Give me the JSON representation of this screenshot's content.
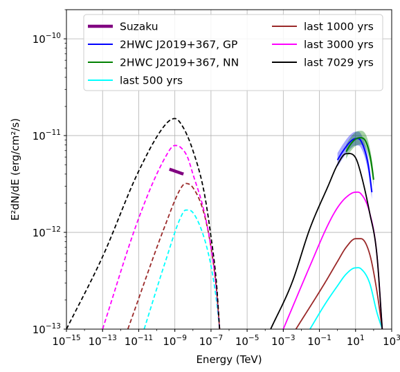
{
  "chart_data": {
    "type": "line",
    "xlabel": "Energy (TeV)",
    "ylabel": "E²dN/dE (erg/cm²/s)",
    "xscale": "log",
    "yscale": "log",
    "xlim": [
      1e-15,
      1000
    ],
    "ylim": [
      1e-13,
      2e-10
    ],
    "xticks": [
      {
        "base": "10",
        "exp": "−15",
        "value": 1e-15
      },
      {
        "base": "10",
        "exp": "−13",
        "value": 1e-13
      },
      {
        "base": "10",
        "exp": "−11",
        "value": 1e-11
      },
      {
        "base": "10",
        "exp": "−9",
        "value": 1e-09
      },
      {
        "base": "10",
        "exp": "−7",
        "value": 1e-07
      },
      {
        "base": "10",
        "exp": "−5",
        "value": 1e-05
      },
      {
        "base": "10",
        "exp": "−3",
        "value": 0.001
      },
      {
        "base": "10",
        "exp": "−1",
        "value": 0.1
      },
      {
        "base": "10",
        "exp": "1",
        "value": 10
      },
      {
        "base": "10",
        "exp": "3",
        "value": 1000
      }
    ],
    "yticks": [
      {
        "base": "10",
        "exp": "−13",
        "value": 1e-13
      },
      {
        "base": "10",
        "exp": "−12",
        "value": 1e-12
      },
      {
        "base": "10",
        "exp": "−11",
        "value": 1e-11
      },
      {
        "base": "10",
        "exp": "−10",
        "value": 1e-10
      }
    ],
    "grid": true,
    "legend_position": "top",
    "legend_columns": 2,
    "series": [
      {
        "name": "Suzaku",
        "color": "#800080",
        "style": "solid-thick",
        "x": [
          5e-10,
          3e-09
        ],
        "y": [
          4.5e-12,
          4e-12
        ]
      },
      {
        "name": "2HWC J2019+367, GP",
        "color": "#0000ff",
        "style": "solid-band",
        "x": [
          1,
          2,
          5,
          10,
          20,
          50,
          80
        ],
        "y": [
          5.6e-12,
          6.9e-12,
          8.6e-12,
          9.3e-12,
          8.8e-12,
          5e-12,
          2.6e-12
        ]
      },
      {
        "name": "2HWC J2019+367, NN",
        "color": "#008000",
        "style": "solid-band",
        "x": [
          3,
          5,
          10,
          20,
          40,
          70,
          100
        ],
        "y": [
          6.8e-12,
          8e-12,
          9.2e-12,
          9.5e-12,
          8.4e-12,
          5.6e-12,
          3.5e-12
        ]
      },
      {
        "name": "last 500 yrs",
        "color": "#00ffff",
        "style": "dashed+solid",
        "x": [
          2e-11,
          3e-10,
          2e-09,
          4e-09,
          1e-08,
          4e-08,
          1e-07,
          2e-07,
          3e-07,
          0.03,
          0.2,
          1,
          3,
          10,
          20,
          60,
          150,
          300
        ],
        "y": [
          1e-13,
          5e-13,
          1.4e-12,
          1.7e-12,
          1.6e-12,
          9e-13,
          4.5e-13,
          2e-13,
          1e-13,
          1e-13,
          1.8e-13,
          2.8e-13,
          3.7e-13,
          4.3e-13,
          4.2e-13,
          3e-13,
          1.5e-13,
          1e-13
        ]
      },
      {
        "name": "last 1000 yrs",
        "color": "#9a2828",
        "style": "dashed+solid",
        "x": [
          2.5e-12,
          3e-10,
          2e-09,
          4e-09,
          1e-08,
          4e-08,
          1e-07,
          2e-07,
          3e-07,
          0.005,
          0.2,
          1,
          3,
          10,
          20,
          60,
          150,
          300
        ],
        "y": [
          1e-13,
          1.2e-12,
          2.8e-12,
          3.2e-12,
          2.9e-12,
          1.6e-12,
          7e-13,
          2.6e-13,
          1e-13,
          1e-13,
          3e-13,
          5e-13,
          7e-13,
          8.6e-13,
          8.6e-13,
          6e-13,
          2.5e-13,
          1e-13
        ]
      },
      {
        "name": "last 3000 yrs",
        "color": "#ff00ff",
        "style": "dashed+solid",
        "x": [
          1e-13,
          1e-11,
          3e-10,
          1e-09,
          2e-09,
          5e-09,
          1e-08,
          4e-08,
          1e-07,
          2e-07,
          3e-07,
          0.001,
          0.03,
          0.3,
          1,
          3,
          10,
          20,
          60,
          150,
          300
        ],
        "y": [
          1e-13,
          1.4e-12,
          6e-12,
          7.9e-12,
          7.6e-12,
          6e-12,
          4e-12,
          1.7e-12,
          7e-13,
          2.6e-13,
          1e-13,
          1e-13,
          4.5e-13,
          1.2e-12,
          1.8e-12,
          2.3e-12,
          2.6e-12,
          2.5e-12,
          1.6e-12,
          6e-13,
          1e-13
        ]
      },
      {
        "name": "last 7029 yrs",
        "color": "#000000",
        "style": "dashed+solid",
        "x": [
          1e-15,
          1e-13,
          1e-11,
          3e-10,
          1e-09,
          3e-09,
          1e-08,
          4e-08,
          1e-07,
          2e-07,
          3e-07,
          0.0002,
          0.003,
          0.03,
          0.3,
          1,
          3,
          10,
          20,
          60,
          150,
          300
        ],
        "y": [
          1e-13,
          5.6e-13,
          4.3e-12,
          1.3e-11,
          1.5e-11,
          1.2e-11,
          7e-12,
          2.7e-12,
          9e-13,
          3e-13,
          1e-13,
          1e-13,
          3e-13,
          1.1e-12,
          3e-12,
          5e-12,
          6.5e-12,
          5.9e-12,
          4e-12,
          1.6e-12,
          6e-13,
          1e-13
        ]
      }
    ]
  }
}
